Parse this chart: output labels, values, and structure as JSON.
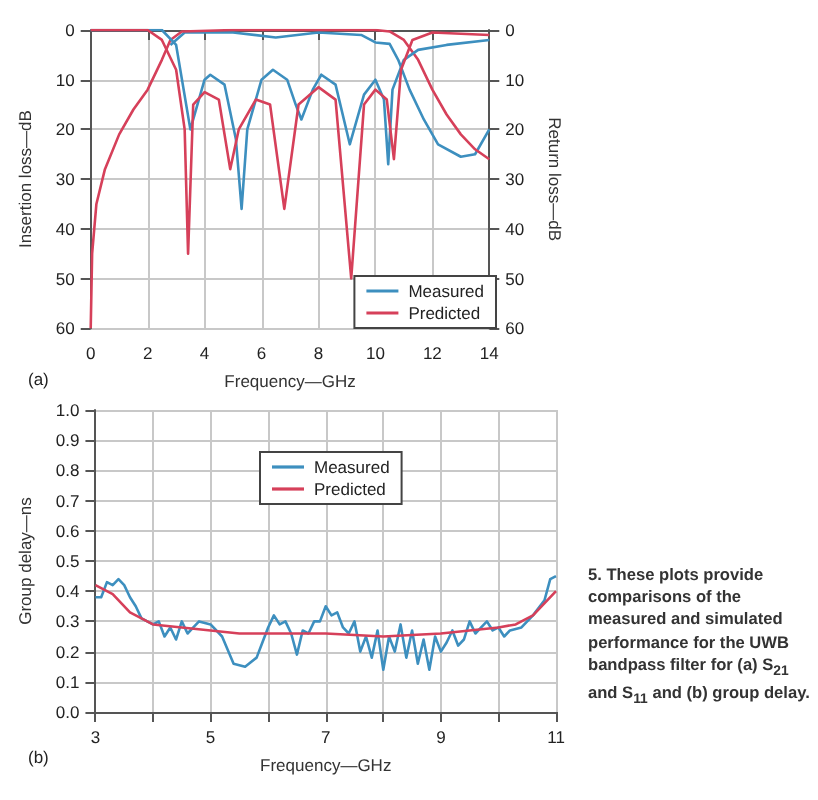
{
  "chart_data": [
    {
      "type": "line",
      "xlabel": "Frequency—GHz",
      "ylabel": "Insertion loss—dB",
      "y2label": "Return loss—dB",
      "annotations": [
        "(a)"
      ],
      "xlim": [
        0,
        14
      ],
      "xticks": [
        0,
        2,
        4,
        6,
        8,
        10,
        12,
        14
      ],
      "ylim": [
        60,
        0
      ],
      "yticks": [
        0,
        10,
        20,
        30,
        40,
        50,
        60
      ],
      "y2lim": [
        60,
        0
      ],
      "y2ticks": [
        0,
        10,
        20,
        30,
        40,
        50,
        60
      ],
      "grid": true,
      "legend": "bottom right",
      "series": [
        {
          "name": "Measured",
          "color": "#3d8fbf",
          "x": [
            2.8,
            3.3,
            5,
            6.5,
            8,
            9.5,
            10,
            10.5,
            10.8,
            11.2,
            11.7,
            12.2,
            13,
            13.5,
            14
          ],
          "values": [
            3,
            0.5,
            0.5,
            1.5,
            0.5,
            1,
            2.5,
            2.8,
            6,
            12,
            18,
            23,
            25.5,
            25,
            20
          ]
        },
        {
          "name": "Predicted",
          "color": "#d6405a",
          "x": [
            0,
            0.05,
            0.2,
            0.5,
            1,
            1.5,
            2,
            2.5,
            2.8,
            3.2,
            5,
            10,
            10.5,
            11,
            11.5,
            12,
            12.5,
            13,
            13.5,
            14
          ],
          "values": [
            60,
            45,
            35,
            28,
            21,
            16,
            12,
            6,
            2,
            0.3,
            0,
            0,
            0.3,
            2,
            6,
            12,
            17,
            21,
            24,
            26
          ]
        },
        {
          "color": "#3d8fbf",
          "x": [
            0,
            2.5,
            3,
            3.5,
            4,
            4.2,
            4.7,
            5.1,
            5.3,
            5.5,
            6,
            6.4,
            6.9,
            7.2,
            7.4,
            7.8,
            8.1,
            8.6,
            9.1,
            9.6,
            10,
            10.3,
            10.45,
            10.6,
            11,
            11.5,
            12.5,
            14
          ],
          "values": [
            0,
            0,
            3,
            20,
            10,
            9,
            11,
            22,
            36,
            20,
            10,
            8,
            10,
            15,
            18,
            12,
            9,
            11,
            23,
            13,
            10,
            14,
            27,
            12,
            6,
            4,
            3,
            2
          ]
        },
        {
          "color": "#d6405a",
          "x": [
            0,
            2,
            2.5,
            3,
            3.3,
            3.42,
            3.6,
            4,
            4.5,
            4.9,
            5.2,
            5.8,
            6.3,
            6.8,
            7.3,
            8,
            8.6,
            9.15,
            9.6,
            10,
            10.4,
            10.65,
            10.9,
            11.3,
            12,
            14
          ],
          "values": [
            0,
            0,
            2,
            8,
            20,
            45,
            15,
            12.5,
            14,
            28,
            20,
            14,
            15,
            36,
            15,
            11.5,
            14,
            50,
            15,
            12,
            14,
            26,
            8,
            2,
            0.5,
            1
          ]
        }
      ]
    },
    {
      "type": "line",
      "xlabel": "Frequency—GHz",
      "ylabel": "Group delay—ns",
      "annotations": [
        "(b)"
      ],
      "xlim": [
        3,
        11
      ],
      "xticks": [
        3,
        {
          "value": 4,
          "label": null
        },
        5,
        {
          "value": 6,
          "label": null
        },
        7,
        {
          "value": 8,
          "label": null
        },
        9,
        {
          "value": 10,
          "label": null
        },
        11
      ],
      "ylim": [
        0,
        1
      ],
      "yticks": [
        {
          "value": 0,
          "label": "0.0"
        },
        0.1,
        0.2,
        0.3,
        0.4,
        0.5,
        0.6,
        0.7,
        0.8,
        0.9,
        {
          "value": 1,
          "label": "1.0"
        }
      ],
      "grid": true,
      "legend": "top",
      "series": [
        {
          "name": "Measured",
          "color": "#3d8fbf",
          "x": [
            3,
            3.1,
            3.2,
            3.3,
            3.4,
            3.5,
            3.6,
            3.7,
            3.8,
            4,
            4.1,
            4.2,
            4.3,
            4.4,
            4.5,
            4.6,
            4.7,
            4.8,
            5,
            5.2,
            5.4,
            5.6,
            5.8,
            5.9,
            6,
            6.1,
            6.2,
            6.3,
            6.4,
            6.5,
            6.6,
            6.7,
            6.8,
            6.9,
            7,
            7.1,
            7.2,
            7.3,
            7.4,
            7.5,
            7.6,
            7.7,
            7.8,
            7.9,
            8,
            8.1,
            8.2,
            8.3,
            8.4,
            8.5,
            8.6,
            8.7,
            8.8,
            8.9,
            9,
            9.1,
            9.2,
            9.3,
            9.4,
            9.5,
            9.6,
            9.7,
            9.8,
            9.9,
            10,
            10.1,
            10.2,
            10.4,
            10.6,
            10.8,
            10.9,
            11
          ],
          "values": [
            0.38,
            0.38,
            0.43,
            0.42,
            0.44,
            0.42,
            0.38,
            0.35,
            0.31,
            0.29,
            0.3,
            0.25,
            0.28,
            0.24,
            0.3,
            0.26,
            0.28,
            0.3,
            0.29,
            0.25,
            0.16,
            0.15,
            0.18,
            0.23,
            0.28,
            0.32,
            0.29,
            0.3,
            0.26,
            0.19,
            0.27,
            0.26,
            0.3,
            0.3,
            0.35,
            0.32,
            0.33,
            0.28,
            0.26,
            0.3,
            0.2,
            0.25,
            0.18,
            0.27,
            0.14,
            0.25,
            0.2,
            0.29,
            0.18,
            0.27,
            0.16,
            0.24,
            0.14,
            0.25,
            0.2,
            0.23,
            0.27,
            0.22,
            0.24,
            0.3,
            0.26,
            0.28,
            0.3,
            0.27,
            0.28,
            0.25,
            0.27,
            0.28,
            0.32,
            0.37,
            0.44,
            0.45
          ]
        },
        {
          "name": "Predicted",
          "color": "#d6405a",
          "x": [
            3,
            3.3,
            3.6,
            4,
            4.5,
            5,
            5.5,
            6,
            7,
            8,
            9,
            9.5,
            10,
            10.3,
            10.6,
            11
          ],
          "values": [
            0.42,
            0.39,
            0.33,
            0.29,
            0.28,
            0.27,
            0.26,
            0.26,
            0.26,
            0.25,
            0.26,
            0.27,
            0.28,
            0.29,
            0.32,
            0.4
          ]
        }
      ]
    },
    {
      "type": "other",
      "annotations": [
        "5. These plots provide comparisons of the measured and simulated performance for the UWB bandpass filter for (a) S$_{21}$ and S$_{11}$ and (b) group delay."
      ]
    }
  ]
}
